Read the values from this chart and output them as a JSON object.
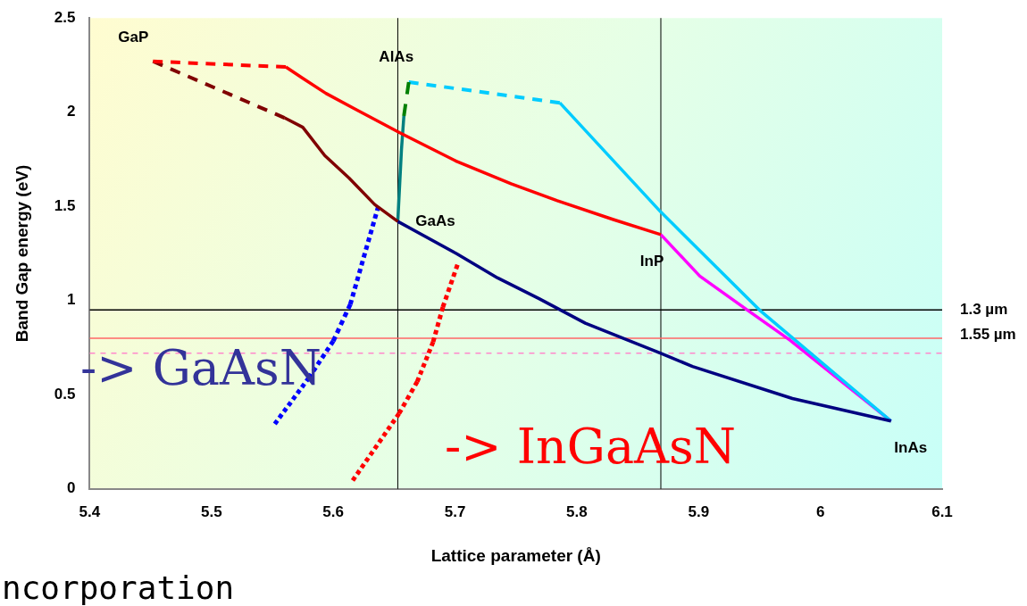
{
  "chart_data": {
    "type": "line",
    "xlabel": "Lattice parameter (Å)",
    "ylabel": "Band Gap energy (eV)",
    "xlim": [
      5.4,
      6.1
    ],
    "xticks": [
      5.4,
      5.5,
      5.6,
      5.7,
      5.8,
      5.9,
      6,
      6.1
    ],
    "ylim": [
      0,
      2.5
    ],
    "yticks": [
      0,
      0.5,
      1,
      1.5,
      2,
      2.5
    ],
    "grid": false,
    "legend": false,
    "marker": "none",
    "series": [
      {
        "color": "#ff0000",
        "line_style": "dashed",
        "x": [
          5.452,
          5.561
        ],
        "values": [
          2.27,
          2.24
        ]
      },
      {
        "color": "#ff0000",
        "line_style": "solid",
        "x": [
          5.561,
          5.575,
          5.594,
          5.617,
          5.655,
          5.701,
          5.746,
          5.784,
          5.83,
          5.869
        ],
        "values": [
          2.24,
          2.18,
          2.1,
          2.02,
          1.89,
          1.74,
          1.62,
          1.53,
          1.43,
          1.35
        ]
      },
      {
        "color": "#800000",
        "line_style": "dashed",
        "x": [
          5.452,
          5.56
        ],
        "values": [
          2.27,
          1.97
        ]
      },
      {
        "color": "#800000",
        "line_style": "solid",
        "x": [
          5.56,
          5.575,
          5.593,
          5.613,
          5.634,
          5.653
        ],
        "values": [
          1.97,
          1.92,
          1.77,
          1.65,
          1.51,
          1.42
        ]
      },
      {
        "color": "#000080",
        "line_style": "solid",
        "x": [
          5.653,
          5.701,
          5.735,
          5.769,
          5.807,
          5.869,
          5.895,
          5.977,
          6.058
        ],
        "values": [
          1.42,
          1.25,
          1.12,
          1.01,
          0.88,
          0.72,
          0.65,
          0.48,
          0.36
        ]
      },
      {
        "color": "#008080",
        "line_style": "solid",
        "x": [
          5.653,
          5.656,
          5.658
        ],
        "values": [
          1.42,
          1.8,
          1.98
        ]
      },
      {
        "color": "#008000",
        "line_style": "dashed",
        "x": [
          5.658,
          5.662
        ],
        "values": [
          1.98,
          2.16
        ]
      },
      {
        "color": "#00ccff",
        "line_style": "dashed",
        "x": [
          5.662,
          5.786
        ],
        "values": [
          2.16,
          2.05
        ]
      },
      {
        "color": "#00ccff",
        "line_style": "solid",
        "x": [
          5.786,
          5.869,
          5.95,
          6.058
        ],
        "values": [
          2.05,
          1.47,
          0.95,
          0.36
        ]
      },
      {
        "color": "#ff00ff",
        "line_style": "solid",
        "x": [
          5.869,
          5.901,
          5.94,
          5.975,
          6.058
        ],
        "values": [
          1.35,
          1.13,
          0.95,
          0.79,
          0.36
        ]
      },
      {
        "color": "#0000ff",
        "line_style": "dotted",
        "x": [
          5.637,
          5.614,
          5.6,
          5.58,
          5.552
        ],
        "values": [
          1.5,
          0.98,
          0.785,
          0.59,
          0.345
        ]
      },
      {
        "color": "#ff0000",
        "line_style": "dotted",
        "x": [
          5.702,
          5.69,
          5.682,
          5.669,
          5.654,
          5.616
        ],
        "values": [
          1.19,
          0.965,
          0.78,
          0.57,
          0.4,
          0.045
        ]
      }
    ],
    "ref_lines": [
      {
        "axis": "x",
        "value": 5.653,
        "color": "#000000"
      },
      {
        "axis": "x",
        "value": 5.869,
        "color": "#000000"
      },
      {
        "axis": "y",
        "value": 0.95,
        "label": "1.3 µm",
        "color": "#000000"
      },
      {
        "axis": "y",
        "value": 0.8,
        "label": "1.55 µm",
        "color": "#ff6666"
      },
      {
        "axis": "y",
        "value": 0.72,
        "color": "#ff88cc",
        "line_style": "dashed"
      }
    ],
    "annotations": [
      {
        "text": "GaP",
        "x": 5.452,
        "y": 2.27
      },
      {
        "text": "AlAs",
        "x": 5.662,
        "y": 2.16
      },
      {
        "text": "GaAs",
        "x": 5.653,
        "y": 1.42
      },
      {
        "text": "InP",
        "x": 5.869,
        "y": 1.35
      },
      {
        "text": "InAs",
        "x": 6.058,
        "y": 0.36
      },
      "-> GaAsN",
      "-> InGaAsN",
      "ncorporation"
    ]
  }
}
